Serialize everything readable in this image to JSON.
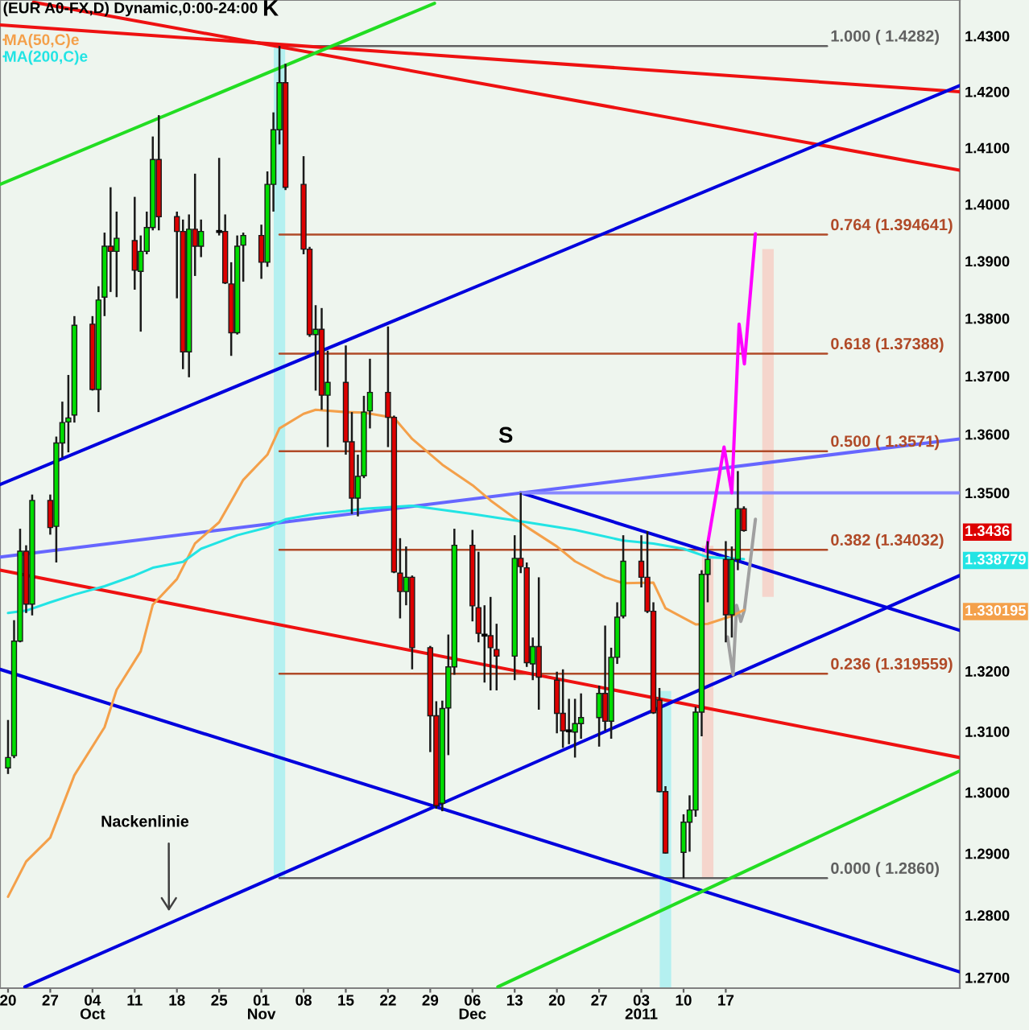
{
  "chart_data": {
    "type": "candlestick",
    "title": "(EUR A0-FX,D) Dynamic,0:00-24:00",
    "log": true,
    "legend": "top left",
    "x": [
      "2010-09-20",
      "2010-09-21",
      "2010-09-22",
      "2010-09-23",
      "2010-09-24",
      "2010-09-27",
      "2010-09-28",
      "2010-09-29",
      "2010-09-30",
      "2010-10-01",
      "2010-10-04",
      "2010-10-05",
      "2010-10-06",
      "2010-10-07",
      "2010-10-08",
      "2010-10-11",
      "2010-10-12",
      "2010-10-13",
      "2010-10-14",
      "2010-10-15",
      "2010-10-18",
      "2010-10-19",
      "2010-10-20",
      "2010-10-21",
      "2010-10-22",
      "2010-10-25",
      "2010-10-26",
      "2010-10-27",
      "2010-10-28",
      "2010-10-29",
      "2010-11-01",
      "2010-11-02",
      "2010-11-03",
      "2010-11-04",
      "2010-11-05",
      "2010-11-08",
      "2010-11-09",
      "2010-11-10",
      "2010-11-11",
      "2010-11-12",
      "2010-11-15",
      "2010-11-16",
      "2010-11-17",
      "2010-11-18",
      "2010-11-19",
      "2010-11-22",
      "2010-11-23",
      "2010-11-24",
      "2010-11-25",
      "2010-11-26",
      "2010-11-29",
      "2010-11-30",
      "2010-12-01",
      "2010-12-02",
      "2010-12-03",
      "2010-12-06",
      "2010-12-07",
      "2010-12-08",
      "2010-12-09",
      "2010-12-10",
      "2010-12-13",
      "2010-12-14",
      "2010-12-15",
      "2010-12-16",
      "2010-12-17",
      "2010-12-20",
      "2010-12-21",
      "2010-12-22",
      "2010-12-23",
      "2010-12-24",
      "2010-12-27",
      "2010-12-28",
      "2010-12-29",
      "2010-12-30",
      "2010-12-31",
      "2011-01-03",
      "2011-01-04",
      "2011-01-05",
      "2011-01-06",
      "2011-01-07",
      "2011-01-10",
      "2011-01-11",
      "2011-01-12",
      "2011-01-13",
      "2011-01-14",
      "2011-01-17",
      "2011-01-18",
      "2011-01-19",
      "2011-01-20"
    ],
    "ohlc": [
      [
        1.304,
        1.3119,
        1.303,
        1.3057
      ],
      [
        1.306,
        1.3285,
        1.3056,
        1.325
      ],
      [
        1.325,
        1.3439,
        1.3248,
        1.3401
      ],
      [
        1.3401,
        1.3411,
        1.3297,
        1.3312
      ],
      [
        1.3312,
        1.3497,
        1.3293,
        1.3487
      ],
      [
        1.3487,
        1.3497,
        1.3429,
        1.3441
      ],
      [
        1.3443,
        1.3596,
        1.3382,
        1.3585
      ],
      [
        1.3585,
        1.3656,
        1.356,
        1.362
      ],
      [
        1.3621,
        1.3702,
        1.3569,
        1.3628
      ],
      [
        1.3633,
        1.3804,
        1.362,
        1.3788
      ],
      [
        1.379,
        1.3804,
        1.3675,
        1.3677
      ],
      [
        1.3677,
        1.3856,
        1.3638,
        1.3832
      ],
      [
        1.3837,
        1.395,
        1.3804,
        1.3926
      ],
      [
        1.3926,
        1.403,
        1.3846,
        1.3917
      ],
      [
        1.3917,
        1.3987,
        1.3837,
        1.394
      ],
      [
        1.3936,
        1.4013,
        1.385,
        1.3884
      ],
      [
        1.3882,
        1.3945,
        1.3777,
        1.3917
      ],
      [
        1.3917,
        1.3987,
        1.3912,
        1.3959
      ],
      [
        1.3959,
        1.412,
        1.3954,
        1.4079
      ],
      [
        1.4079,
        1.4158,
        1.3954,
        1.3978
      ],
      [
        1.3978,
        1.3987,
        1.3835,
        1.3952
      ],
      [
        1.3952,
        1.3973,
        1.3712,
        1.3742
      ],
      [
        1.3742,
        1.3982,
        1.3698,
        1.3956
      ],
      [
        1.3956,
        1.4054,
        1.3874,
        1.3926
      ],
      [
        1.3926,
        1.3973,
        1.3907,
        1.3952
      ],
      [
        1.3952,
        1.4082,
        1.3945,
        1.3952
      ],
      [
        1.3952,
        1.3982,
        1.386,
        1.3862
      ],
      [
        1.386,
        1.3898,
        1.3735,
        1.3775
      ],
      [
        1.3775,
        1.3945,
        1.3772,
        1.3926
      ],
      [
        1.3928,
        1.395,
        1.3864,
        1.3945
      ],
      [
        1.3945,
        1.3964,
        1.3869,
        1.3898
      ],
      [
        1.3898,
        1.4058,
        1.389,
        1.4035
      ],
      [
        1.4035,
        1.4163,
        1.3987,
        1.4132
      ],
      [
        1.4132,
        1.4282,
        1.4106,
        1.4216
      ],
      [
        1.4216,
        1.425,
        1.4025,
        1.403
      ],
      [
        1.4035,
        1.4085,
        1.3912,
        1.3921
      ],
      [
        1.3921,
        1.3925,
        1.3768,
        1.3772
      ],
      [
        1.3772,
        1.3823,
        1.3675,
        1.3781
      ],
      [
        1.3781,
        1.3818,
        1.3642,
        1.3667
      ],
      [
        1.3667,
        1.3744,
        1.3578,
        1.3689
      ],
      [
        1.3689,
        1.3753,
        1.3565,
        1.3587
      ],
      [
        1.3587,
        1.3638,
        1.3464,
        1.3491
      ],
      [
        1.3491,
        1.3565,
        1.346,
        1.3528
      ],
      [
        1.3529,
        1.3666,
        1.3525,
        1.3638
      ],
      [
        1.364,
        1.373,
        1.361,
        1.3672
      ],
      [
        1.3672,
        1.3786,
        1.3578,
        1.3629
      ],
      [
        1.3629,
        1.3632,
        1.3364,
        1.3366
      ],
      [
        1.3364,
        1.3423,
        1.3288,
        1.3333
      ],
      [
        1.3333,
        1.3409,
        1.331,
        1.3357
      ],
      [
        1.3357,
        1.336,
        1.3203,
        1.3239
      ],
      [
        1.3239,
        1.3242,
        1.3066,
        1.3126
      ],
      [
        1.3126,
        1.315,
        1.2973,
        1.2978
      ],
      [
        1.2982,
        1.3151,
        1.2969,
        1.3138
      ],
      [
        1.3139,
        1.3261,
        1.3061,
        1.3207
      ],
      [
        1.3207,
        1.3439,
        1.3194,
        1.3411
      ],
      [
        1.3411,
        1.3437,
        1.3283,
        1.3309
      ],
      [
        1.3306,
        1.34,
        1.3248,
        1.3263
      ],
      [
        1.326,
        1.331,
        1.3181,
        1.326
      ],
      [
        1.3259,
        1.3324,
        1.3168,
        1.3239
      ],
      [
        1.3236,
        1.3279,
        1.3168,
        1.3225
      ],
      [
        1.3225,
        1.3428,
        1.3185,
        1.3389
      ],
      [
        1.3389,
        1.35,
        1.3364,
        1.3375
      ],
      [
        1.3373,
        1.3382,
        1.3207,
        1.3214
      ],
      [
        1.3212,
        1.3256,
        1.3185,
        1.3241
      ],
      [
        1.3241,
        1.3357,
        1.3136,
        1.319
      ],
      [
        1.3185,
        1.3199,
        1.3097,
        1.313
      ],
      [
        1.313,
        1.3203,
        1.3073,
        1.3101
      ],
      [
        1.3101,
        1.3154,
        1.3079,
        1.3101
      ],
      [
        1.3099,
        1.3154,
        1.3057,
        1.3113
      ],
      [
        1.3113,
        1.3163,
        1.3088,
        1.3123
      ],
      [
        1.3123,
        1.3176,
        1.3075,
        1.3163
      ],
      [
        1.3163,
        1.3276,
        1.3101,
        1.3117
      ],
      [
        1.3117,
        1.3239,
        1.3088,
        1.3223
      ],
      [
        1.3223,
        1.3315,
        1.3212,
        1.329
      ],
      [
        1.3292,
        1.3428,
        1.3288,
        1.3384
      ],
      [
        1.3384,
        1.3428,
        1.334,
        1.3357
      ],
      [
        1.3357,
        1.3435,
        1.3297,
        1.33
      ],
      [
        1.33,
        1.3315,
        1.3129,
        1.3131
      ],
      [
        1.3152,
        1.3172,
        1.3,
        1.3001
      ],
      [
        1.3001,
        1.301,
        1.29,
        1.2901
      ],
      [
        1.2902,
        1.2964,
        1.286,
        1.2951
      ],
      [
        1.2951,
        1.2995,
        1.2903,
        1.2971
      ],
      [
        1.2971,
        1.3141,
        1.296,
        1.3132
      ],
      [
        1.3132,
        1.3369,
        1.3092,
        1.3362
      ],
      [
        1.3362,
        1.3418,
        1.3315,
        1.3387
      ],
      [
        1.3387,
        1.3418,
        1.3248,
        1.3294
      ],
      [
        1.3294,
        1.3409,
        1.3256,
        1.3387
      ],
      [
        1.3387,
        1.3537,
        1.3369,
        1.3473
      ],
      [
        1.3473,
        1.3477,
        1.3434,
        1.3436
      ]
    ],
    "colors": [
      "#00dd00",
      "#00dd00",
      "#00dd00",
      "#dd0000",
      "#00dd00",
      "#dd0000",
      "#00dd00",
      "#00dd00",
      "#00dd00",
      "#00dd00",
      "#dd0000",
      "#00dd00",
      "#00dd00",
      "#dd0000",
      "#00dd00",
      "#dd0000",
      "#00dd00",
      "#00dd00",
      "#00dd00",
      "#dd0000",
      "#dd0000",
      "#dd0000",
      "#00dd00",
      "#dd0000",
      "#00dd00",
      "#000000",
      "#dd0000",
      "#dd0000",
      "#00dd00",
      "#00dd00",
      "#dd0000",
      "#00dd00",
      "#00dd00",
      "#00dd00",
      "#dd0000",
      "#dd0000",
      "#dd0000",
      "#00dd00",
      "#dd0000",
      "#00dd00",
      "#dd0000",
      "#dd0000",
      "#00dd00",
      "#00dd00",
      "#00dd00",
      "#dd0000",
      "#dd0000",
      "#dd0000",
      "#00dd00",
      "#dd0000",
      "#dd0000",
      "#dd0000",
      "#00dd00",
      "#00dd00",
      "#00dd00",
      "#dd0000",
      "#dd0000",
      "#000000",
      "#dd0000",
      "#dd0000",
      "#00dd00",
      "#dd0000",
      "#dd0000",
      "#00dd00",
      "#dd0000",
      "#dd0000",
      "#dd0000",
      "#000000",
      "#00dd00",
      "#00dd00",
      "#00dd00",
      "#dd0000",
      "#00dd00",
      "#00dd00",
      "#00dd00",
      "#dd0000",
      "#dd0000",
      "#dd0000",
      "#dd0000",
      "#dd0000",
      "#00dd00",
      "#00dd00",
      "#00dd00",
      "#00dd00",
      "#00dd00",
      "#dd0000",
      "#00dd00",
      "#00dd00",
      "#dd0000"
    ],
    "series": [
      {
        "type": "bar",
        "x": [
          "2010-11-04",
          "2011-01-07",
          "2011-01-14",
          "2011-01-24"
        ],
        "base": [
          1.286,
          1.2684,
          1.286,
          1.3324
        ],
        "values": [
          0.1422,
          0.0483,
          0.055,
          0.0597
        ],
        "colors": [
          "#b4f0f0",
          "#b4f0f0",
          "#f5d5cc",
          "#f5d5cc"
        ]
      },
      {
        "type": "line",
        "color": "#606060",
        "x": [
          "2010-11-04",
          "2011-02-02T19:00"
        ],
        "values": [
          1.4282,
          1.4282
        ],
        "value_labels": [
          null,
          "1.000 ( 1.4282)"
        ]
      },
      {
        "type": "line",
        "color": "#b04a28",
        "x": [
          "2010-11-04",
          "2011-02-02T19:00"
        ],
        "values": [
          1.394641,
          1.394641
        ],
        "value_labels": [
          null,
          "0.764 (1.394641)"
        ]
      },
      {
        "type": "line",
        "color": "#b04a28",
        "x": [
          "2010-11-04",
          "2011-02-02T19:00"
        ],
        "values": [
          1.37388,
          1.37388
        ],
        "value_labels": [
          null,
          "0.618 (1.37388)"
        ]
      },
      {
        "type": "line",
        "color": "#b04a28",
        "x": [
          "2010-11-04",
          "2011-02-02T19:00"
        ],
        "values": [
          1.3571,
          1.3571
        ],
        "value_labels": [
          null,
          "0.500 ( 1.3571)"
        ]
      },
      {
        "type": "line",
        "color": "#b04a28",
        "x": [
          "2010-11-04",
          "2011-02-02T19:00"
        ],
        "values": [
          1.34032,
          1.34032
        ],
        "value_labels": [
          null,
          "0.382 (1.34032)"
        ]
      },
      {
        "type": "line",
        "color": "#b04a28",
        "x": [
          "2010-11-04",
          "2011-02-02T19:00"
        ],
        "values": [
          1.319559,
          1.319559
        ],
        "value_labels": [
          null,
          "0.236 (1.319559)"
        ]
      },
      {
        "type": "line",
        "color": "#606060",
        "x": [
          "2010-11-04",
          "2011-02-02T19:00"
        ],
        "values": [
          1.286,
          1.286
        ],
        "value_labels": [
          null,
          "0.000 ( 1.2860)"
        ]
      },
      {
        "type": "line",
        "color": "#ee1111",
        "x": [
          "2010-09-18T16:00",
          "2011-02-24T19:00"
        ],
        "values": [
          1.432,
          1.42
        ]
      },
      {
        "type": "line",
        "color": "#ee1111",
        "x": [
          "2010-09-24T05:00",
          "2011-02-24T19:00"
        ],
        "values": [
          1.4361,
          1.406
        ]
      },
      {
        "type": "line",
        "color": "#ee1111",
        "x": [
          "2010-09-18T16:00",
          "2011-02-24T19:00"
        ],
        "values": [
          1.3369,
          1.3057
        ]
      },
      {
        "type": "line",
        "color": "#0000dd",
        "x": [
          "2010-09-18T16:00",
          "2011-02-24T19:00"
        ],
        "values": [
          1.3514,
          1.4211
        ]
      },
      {
        "type": "line",
        "color": "#0000dd",
        "x": [
          "2010-09-22T19:00",
          "2011-02-24T19:00"
        ],
        "values": [
          1.2685,
          1.336
        ]
      },
      {
        "type": "line",
        "color": "#0000dd",
        "x": [
          "2010-09-18T16:00",
          "2011-02-24T19:00"
        ],
        "values": [
          1.3203,
          1.2709
        ]
      },
      {
        "type": "line",
        "color": "#0000dd",
        "x": [
          "2010-12-14",
          "2011-02-24T19:00"
        ],
        "values": [
          1.35,
          1.3268
        ]
      },
      {
        "type": "line",
        "color": "#6666ff",
        "x": [
          "2010-09-18T16:00",
          "2011-02-24T19:00"
        ],
        "values": [
          1.3391,
          1.3592
        ]
      },
      {
        "type": "line",
        "color": "#8888ff",
        "x": [
          "2010-12-14",
          "2011-02-24T19:00"
        ],
        "values": [
          1.35,
          1.35
        ]
      },
      {
        "type": "line",
        "color": "#22dd22",
        "x": [
          "2010-09-18T16:00",
          "2010-11-29T17:00"
        ],
        "values": [
          1.4035,
          1.4359
        ]
      },
      {
        "type": "line",
        "color": "#22dd22",
        "x": [
          "2010-12-10T05:00",
          "2011-02-24T19:00"
        ],
        "values": [
          1.2685,
          1.3035
        ]
      },
      {
        "name": "MA(50,C)e",
        "type": "line",
        "color": "#f4a04a",
        "x": [
          "2010-09-20",
          "2010-09-23",
          "2010-09-27",
          "2010-10-01",
          "2010-10-06",
          "2010-10-08",
          "2010-10-12",
          "2010-10-14",
          "2010-10-18",
          "2010-10-21",
          "2010-10-25",
          "2010-10-27",
          "2010-10-29",
          "2010-11-02",
          "2010-11-04",
          "2010-11-08",
          "2010-11-10",
          "2010-11-15",
          "2010-11-18",
          "2010-11-23",
          "2010-11-26",
          "2010-12-01",
          "2010-12-06",
          "2010-12-09",
          "2010-12-15",
          "2010-12-20",
          "2010-12-23",
          "2010-12-28",
          "2010-12-31",
          "2011-01-05",
          "2011-01-07",
          "2011-01-12",
          "2011-01-14",
          "2011-01-18",
          "2011-01-20"
        ],
        "values": [
          1.283,
          1.2887,
          1.2926,
          1.3028,
          1.3107,
          1.3169,
          1.3233,
          1.3311,
          1.3354,
          1.3414,
          1.345,
          1.3486,
          1.3522,
          1.3565,
          1.361,
          1.3635,
          1.3642,
          1.3638,
          1.3637,
          1.3628,
          1.3592,
          1.3548,
          1.3513,
          1.3487,
          1.3442,
          1.3409,
          1.3384,
          1.3357,
          1.3347,
          1.3348,
          1.3305,
          1.3278,
          1.3279,
          1.3292,
          1.330195
        ]
      },
      {
        "name": "MA(200,C)e",
        "type": "line",
        "color": "#22e4e4",
        "x": [
          "2010-09-20",
          "2010-09-23",
          "2010-09-27",
          "2010-10-01",
          "2010-10-06",
          "2010-10-11",
          "2010-10-14",
          "2010-10-19",
          "2010-10-22",
          "2010-10-28",
          "2010-11-02",
          "2010-11-05",
          "2010-11-10",
          "2010-11-15",
          "2010-11-18",
          "2010-11-26",
          "2010-12-06",
          "2010-12-15",
          "2010-12-23",
          "2010-12-31",
          "2011-01-05",
          "2011-01-10",
          "2011-01-14",
          "2011-01-20"
        ],
        "values": [
          1.3297,
          1.3301,
          1.3315,
          1.3328,
          1.3342,
          1.336,
          1.3373,
          1.3383,
          1.3405,
          1.3428,
          1.3441,
          1.3455,
          1.3464,
          1.3469,
          1.3473,
          1.3478,
          1.3464,
          1.345,
          1.3437,
          1.3419,
          1.3414,
          1.3405,
          1.3391,
          1.338779
        ]
      },
      {
        "type": "line",
        "color": "#ff00ff",
        "x": [
          "2011-01-13T19:00",
          "2011-01-16T17:00",
          "2011-01-18",
          "2011-01-19T05:00",
          "2011-01-20T02:00",
          "2011-01-21T22:00"
        ],
        "values": [
          1.3401,
          1.3578,
          1.35,
          1.379,
          1.3721,
          1.3948
        ]
      },
      {
        "type": "line",
        "color": "#a0a0a0",
        "x": [
          "2011-01-17T07:00",
          "2011-01-18T05:00",
          "2011-01-18T19:00",
          "2011-01-19T12:00",
          "2011-01-20T02:00",
          "2011-01-21T22:00"
        ],
        "values": [
          1.3257,
          1.3194,
          1.331,
          1.3283,
          1.3302,
          1.3455
        ]
      }
    ],
    "xlim": [
      "2010-09-18T16:00",
      "2011-02-24T19:00"
    ],
    "ylim": [
      1.2683,
      1.4365
    ],
    "xticks": [
      {
        "value": "2010-09-20",
        "label": "20"
      },
      {
        "value": "2010-09-27",
        "label": "27"
      },
      {
        "value": "2010-10-04",
        "label": "04\nOct"
      },
      {
        "value": "2010-10-11",
        "label": "11"
      },
      {
        "value": "2010-10-18",
        "label": "18"
      },
      {
        "value": "2010-10-25",
        "label": "25"
      },
      {
        "value": "2010-11-01",
        "label": "01\nNov"
      },
      {
        "value": "2010-11-08",
        "label": "08"
      },
      {
        "value": "2010-11-15",
        "label": "15"
      },
      {
        "value": "2010-11-22",
        "label": "22"
      },
      {
        "value": "2010-11-29",
        "label": "29"
      },
      {
        "value": "2010-12-06",
        "label": "06\nDec"
      },
      {
        "value": "2010-12-13",
        "label": "13"
      },
      {
        "value": "2010-12-20",
        "label": "20"
      },
      {
        "value": "2010-12-27",
        "label": "27"
      },
      {
        "value": "2011-01-03",
        "label": "03\n2011"
      },
      {
        "value": "2011-01-10",
        "label": "10"
      },
      {
        "value": "2011-01-17",
        "label": "17"
      }
    ],
    "yticks": [
      {
        "value": 1.27,
        "label": "1.2700"
      },
      {
        "value": 1.28,
        "label": "1.2800"
      },
      {
        "value": 1.29,
        "label": "1.2900"
      },
      {
        "value": 1.3,
        "label": "1.3000"
      },
      {
        "value": 1.31,
        "label": "1.3100"
      },
      {
        "value": 1.32,
        "label": "1.3200"
      },
      {
        "value": 1.330195,
        "label": "1.330195"
      },
      {
        "value": 1.338779,
        "label": "1.338779"
      },
      {
        "value": 1.3436,
        "label": "1.3436"
      },
      {
        "value": 1.35,
        "label": "1.3500"
      },
      {
        "value": 1.36,
        "label": "1.3600"
      },
      {
        "value": 1.37,
        "label": "1.3700"
      },
      {
        "value": 1.38,
        "label": "1.3800"
      },
      {
        "value": 1.39,
        "label": "1.3900"
      },
      {
        "value": 1.4,
        "label": "1.4000"
      },
      {
        "value": 1.41,
        "label": "1.4100"
      },
      {
        "value": 1.42,
        "label": "1.4200"
      },
      {
        "value": 1.43,
        "label": "1.4300"
      }
    ],
    "annotations": [
      "K",
      "S",
      "Nackenlinie"
    ]
  }
}
